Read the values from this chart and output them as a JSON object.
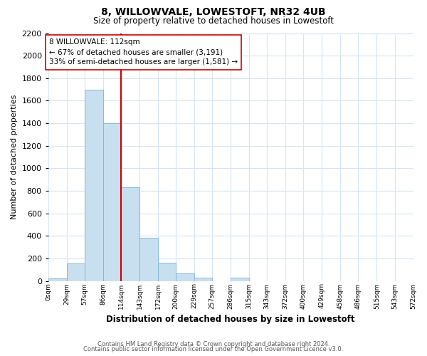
{
  "title": "8, WILLOWVALE, LOWESTOFT, NR32 4UB",
  "subtitle": "Size of property relative to detached houses in Lowestoft",
  "xlabel": "Distribution of detached houses by size in Lowestoft",
  "ylabel": "Number of detached properties",
  "bar_color": "#c8dff0",
  "bar_edge_color": "#7ab4d4",
  "background_color": "#ffffff",
  "grid_color": "#d4e4f4",
  "bin_edges": [
    0,
    29,
    57,
    86,
    114,
    143,
    172,
    200,
    229,
    257,
    286,
    315,
    343,
    372,
    400,
    429,
    458,
    486,
    515,
    543,
    572
  ],
  "bin_labels": [
    "0sqm",
    "29sqm",
    "57sqm",
    "86sqm",
    "114sqm",
    "143sqm",
    "172sqm",
    "200sqm",
    "229sqm",
    "257sqm",
    "286sqm",
    "315sqm",
    "343sqm",
    "372sqm",
    "400sqm",
    "429sqm",
    "458sqm",
    "486sqm",
    "515sqm",
    "543sqm",
    "572sqm"
  ],
  "bar_heights": [
    20,
    155,
    1700,
    1400,
    830,
    385,
    160,
    65,
    30,
    0,
    30,
    0,
    0,
    0,
    0,
    0,
    0,
    0,
    0,
    0
  ],
  "vline_x": 114,
  "vline_color": "#cc0000",
  "annotation_text": "8 WILLOWVALE: 112sqm\n← 67% of detached houses are smaller (3,191)\n33% of semi-detached houses are larger (1,581) →",
  "annotation_box_color": "#ffffff",
  "annotation_box_edge_color": "#cc0000",
  "ylim": [
    0,
    2200
  ],
  "yticks": [
    0,
    200,
    400,
    600,
    800,
    1000,
    1200,
    1400,
    1600,
    1800,
    2000,
    2200
  ],
  "footer_line1": "Contains HM Land Registry data © Crown copyright and database right 2024.",
  "footer_line2": "Contains public sector information licensed under the Open Government Licence v3.0."
}
